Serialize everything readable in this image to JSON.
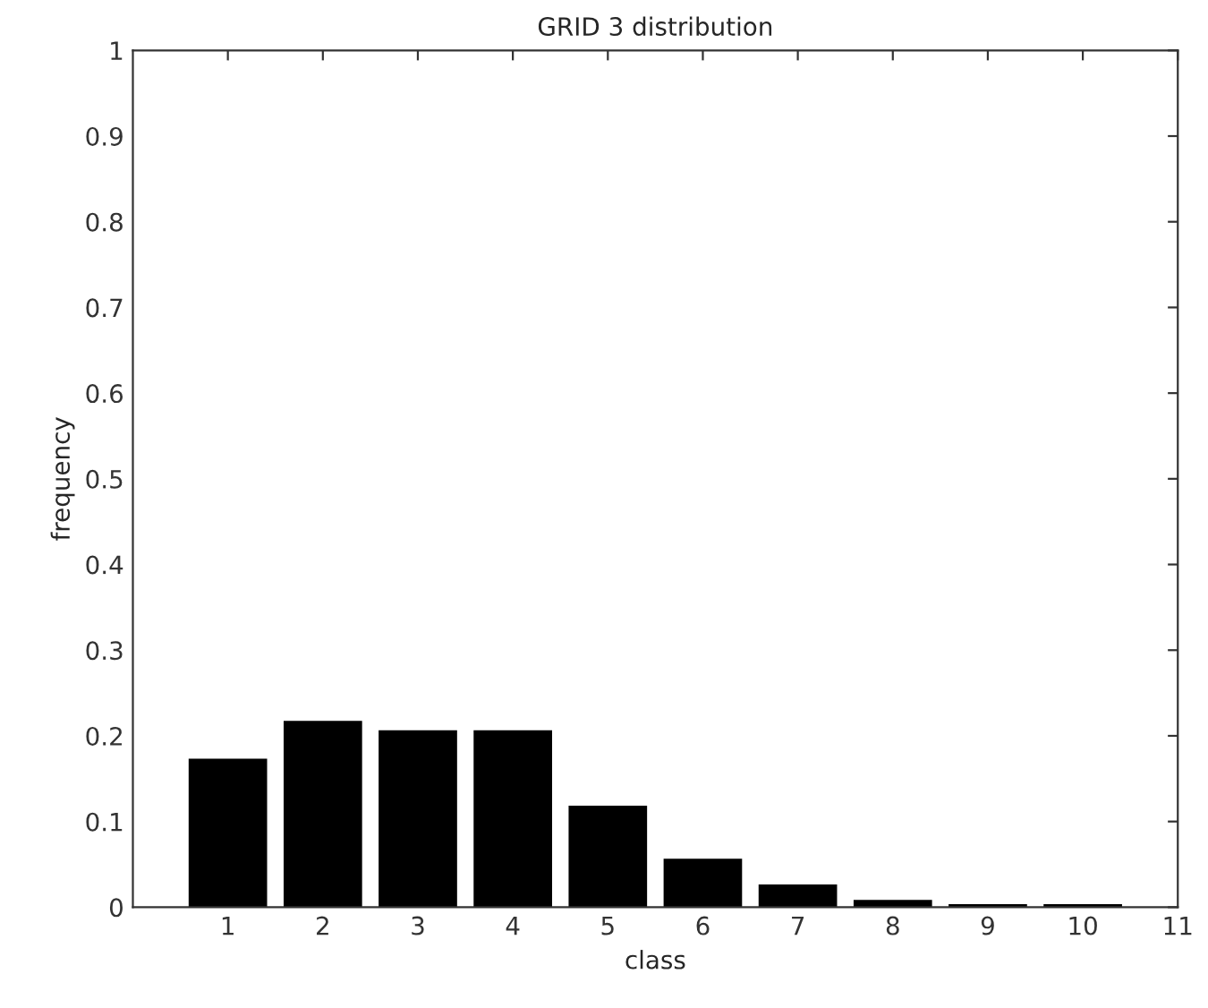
{
  "chart_data": {
    "type": "bar",
    "title": "GRID 3 distribution",
    "xlabel": "class",
    "ylabel": "frequency",
    "x": [
      1,
      2,
      3,
      4,
      5,
      6,
      7,
      8,
      9,
      10
    ],
    "values": [
      0.172,
      0.216,
      0.205,
      0.205,
      0.117,
      0.055,
      0.025,
      0.007,
      0.002,
      0.002
    ],
    "color": "#000000",
    "xlim": [
      0,
      11
    ],
    "xticks": [
      1,
      2,
      3,
      4,
      5,
      6,
      7,
      8,
      9,
      10,
      11
    ],
    "ylim": [
      0,
      1
    ],
    "yticks": [
      0,
      0.1,
      0.2,
      0.3,
      0.4,
      0.5,
      0.6,
      0.7,
      0.8,
      0.9,
      1
    ],
    "grid": false
  }
}
